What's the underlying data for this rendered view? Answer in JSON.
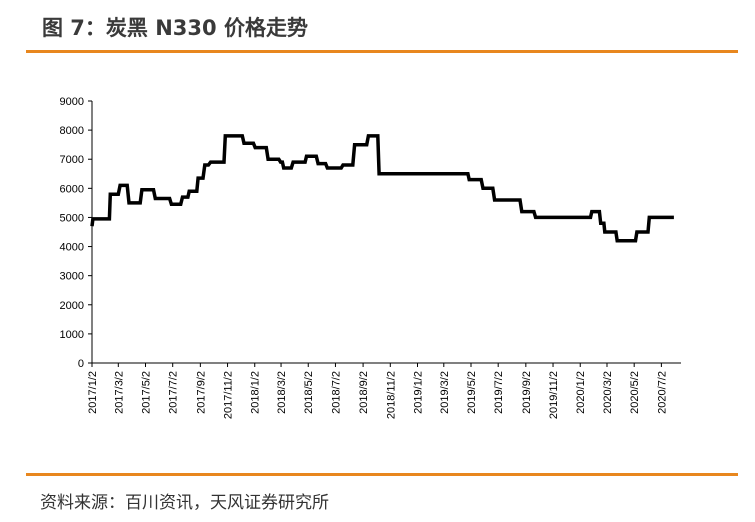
{
  "title": "图 7：炭黑 N330 价格走势",
  "source": "资料来源：百川资讯，天风证券研究所",
  "colors": {
    "accent": "#e8871e",
    "line": "#000000"
  },
  "chart_data": {
    "type": "line",
    "title": "",
    "xlabel": "",
    "ylabel": "",
    "ylim": [
      0,
      9000
    ],
    "yticks": [
      0,
      1000,
      2000,
      3000,
      4000,
      5000,
      6000,
      7000,
      8000,
      9000
    ],
    "xtick_labels": [
      "2017/1/2",
      "2017/3/2",
      "2017/5/2",
      "2017/7/2",
      "2017/9/2",
      "2017/11/2",
      "2018/1/2",
      "2018/3/2",
      "2018/5/2",
      "2018/7/2",
      "2018/9/2",
      "2018/11/2",
      "2019/1/2",
      "2019/3/2",
      "2019/5/2",
      "2019/7/2",
      "2019/9/2",
      "2019/11/2",
      "2020/1/2",
      "2020/3/2",
      "2020/5/2",
      "2020/7/2"
    ],
    "xlim": [
      "2017-01-02",
      "2020-08-15"
    ],
    "grid": false,
    "legend": "none",
    "series": [
      {
        "points": [
          [
            "2017-01-02",
            4700
          ],
          [
            "2017-01-04",
            4950
          ],
          [
            "2017-02-10",
            4950
          ],
          [
            "2017-02-12",
            5800
          ],
          [
            "2017-03-02",
            5800
          ],
          [
            "2017-03-06",
            6100
          ],
          [
            "2017-03-22",
            6100
          ],
          [
            "2017-03-26",
            5500
          ],
          [
            "2017-04-20",
            5500
          ],
          [
            "2017-04-24",
            5950
          ],
          [
            "2017-05-20",
            5950
          ],
          [
            "2017-05-24",
            5650
          ],
          [
            "2017-06-25",
            5650
          ],
          [
            "2017-06-29",
            5450
          ],
          [
            "2017-07-20",
            5450
          ],
          [
            "2017-07-24",
            5700
          ],
          [
            "2017-08-05",
            5700
          ],
          [
            "2017-08-08",
            5900
          ],
          [
            "2017-08-25",
            5900
          ],
          [
            "2017-08-28",
            6350
          ],
          [
            "2017-09-08",
            6350
          ],
          [
            "2017-09-12",
            6800
          ],
          [
            "2017-09-20",
            6800
          ],
          [
            "2017-09-25",
            6900
          ],
          [
            "2017-10-25",
            6900
          ],
          [
            "2017-10-28",
            7800
          ],
          [
            "2017-12-05",
            7800
          ],
          [
            "2017-12-09",
            7550
          ],
          [
            "2017-12-30",
            7550
          ],
          [
            "2018-01-03",
            7400
          ],
          [
            "2018-01-28",
            7400
          ],
          [
            "2018-02-01",
            7000
          ],
          [
            "2018-02-25",
            7000
          ],
          [
            "2018-03-01",
            6900
          ],
          [
            "2018-03-05",
            6900
          ],
          [
            "2018-03-08",
            6700
          ],
          [
            "2018-03-25",
            6700
          ],
          [
            "2018-03-29",
            6900
          ],
          [
            "2018-04-25",
            6900
          ],
          [
            "2018-04-28",
            7100
          ],
          [
            "2018-05-20",
            7100
          ],
          [
            "2018-05-24",
            6850
          ],
          [
            "2018-06-10",
            6850
          ],
          [
            "2018-06-14",
            6700
          ],
          [
            "2018-07-15",
            6700
          ],
          [
            "2018-07-19",
            6800
          ],
          [
            "2018-08-10",
            6800
          ],
          [
            "2018-08-14",
            7500
          ],
          [
            "2018-09-10",
            7500
          ],
          [
            "2018-09-14",
            7800
          ],
          [
            "2018-10-05",
            7800
          ],
          [
            "2018-10-08",
            6500
          ],
          [
            "2019-04-25",
            6500
          ],
          [
            "2019-04-28",
            6300
          ],
          [
            "2019-05-25",
            6300
          ],
          [
            "2019-05-29",
            6000
          ],
          [
            "2019-06-20",
            6000
          ],
          [
            "2019-06-24",
            5600
          ],
          [
            "2019-08-20",
            5600
          ],
          [
            "2019-08-24",
            5200
          ],
          [
            "2019-09-20",
            5200
          ],
          [
            "2019-09-24",
            5000
          ],
          [
            "2020-01-25",
            5000
          ],
          [
            "2020-01-28",
            5200
          ],
          [
            "2020-02-14",
            5200
          ],
          [
            "2020-02-17",
            4800
          ],
          [
            "2020-02-24",
            4800
          ],
          [
            "2020-02-26",
            4500
          ],
          [
            "2020-03-22",
            4500
          ],
          [
            "2020-03-25",
            4200
          ],
          [
            "2020-05-05",
            4200
          ],
          [
            "2020-05-08",
            4500
          ],
          [
            "2020-06-02",
            4500
          ],
          [
            "2020-06-05",
            5000
          ],
          [
            "2020-07-30",
            5000
          ]
        ]
      }
    ]
  }
}
